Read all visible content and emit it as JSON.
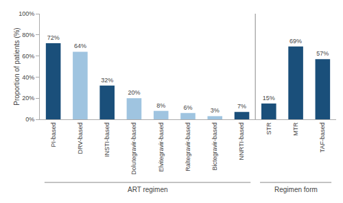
{
  "chart_data": {
    "type": "bar",
    "categories": [
      "PI-based",
      "DRV-based",
      "INSTI-based",
      "Dolutegravir-based",
      "Elvitegravir-based",
      "Raltegravir-based",
      "Bictegravir-based",
      "NNRTI-based",
      "STR",
      "MTR",
      "TAF-based"
    ],
    "values": [
      72,
      64,
      32,
      20,
      8,
      6,
      3,
      7,
      15,
      69,
      57
    ],
    "value_labels": [
      "72%",
      "64%",
      "32%",
      "20%",
      "8%",
      "6%",
      "3%",
      "7%",
      "15%",
      "69%",
      "57%"
    ],
    "data_labels": true,
    "colors": [
      "#1a4f7a",
      "#9fc4e0",
      "#1a4f7a",
      "#9fc4e0",
      "#9fc4e0",
      "#9fc4e0",
      "#9fc4e0",
      "#1a4f7a",
      "#1a4f7a",
      "#1a4f7a",
      "#1a4f7a"
    ],
    "ylabel": "Proportion of patients (%)",
    "ylim": [
      0,
      100
    ],
    "yticks": [
      {
        "value": 0,
        "label": "0%"
      },
      {
        "value": 20,
        "label": "20%"
      },
      {
        "value": 40,
        "label": "40%"
      },
      {
        "value": 60,
        "label": "60%"
      },
      {
        "value": 80,
        "label": "80%"
      },
      {
        "value": 100,
        "label": "100%"
      }
    ],
    "grid": false,
    "annotations": [
      {
        "text": "ART regimen",
        "from": "PI-based",
        "to": "NNRTI-based"
      },
      {
        "text": "Regimen form",
        "from": "STR",
        "to": "TAF-based"
      }
    ]
  }
}
